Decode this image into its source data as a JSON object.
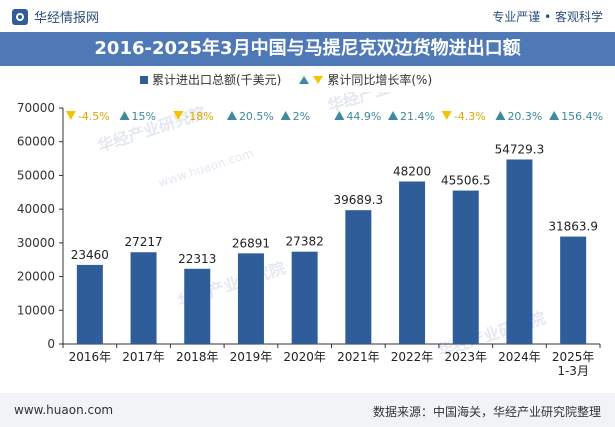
{
  "header": {
    "brand": "华经情报网",
    "tagline": "专业严谨 • 客观科学"
  },
  "title": "2016-2025年3月中国与马提尼克双边货物进出口额",
  "legend": {
    "bar_label": "累计进出口总额(千美元)",
    "growth_label": "累计同比增长率(%)"
  },
  "colors": {
    "bar": "#2f5d9a",
    "up": "#3c8a9c",
    "down": "#f5c400",
    "title_bg": "#4e78b6"
  },
  "chart_data": {
    "type": "bar",
    "categories": [
      "2016年",
      "2017年",
      "2018年",
      "2019年",
      "2020年",
      "2021年",
      "2022年",
      "2023年",
      "2024年",
      "2025年\n1-3月"
    ],
    "series": [
      {
        "name": "累计进出口总额(千美元)",
        "values": [
          23460,
          27217,
          22313,
          26891,
          27382,
          39689.3,
          48200,
          45506.5,
          54729.3,
          31863.9
        ]
      }
    ],
    "value_labels": [
      "23460",
      "27217",
      "22313",
      "26891",
      "27382",
      "39689.3",
      "48200",
      "45506.5",
      "54729.3",
      "31863.9"
    ],
    "growth": [
      -4.5,
      15,
      -18,
      20.5,
      2,
      44.9,
      21.4,
      -4.3,
      20.3,
      156.4
    ],
    "growth_labels": [
      "-4.5%",
      "15%",
      "-18%",
      "20.5%",
      "2%",
      "44.9%",
      "21.4%",
      "-4.3%",
      "20.3%",
      "156.4%"
    ],
    "ylim": [
      0,
      70000
    ],
    "yticks": [
      0,
      10000,
      20000,
      30000,
      40000,
      50000,
      60000,
      70000
    ],
    "grid": false,
    "legend_position": "top"
  },
  "watermark": {
    "cn": "华经产业研究院",
    "url": "www.huaon.com"
  },
  "footer": {
    "website": "www.huaon.com",
    "source": "数据来源：中国海关，华经产业研究院整理"
  }
}
